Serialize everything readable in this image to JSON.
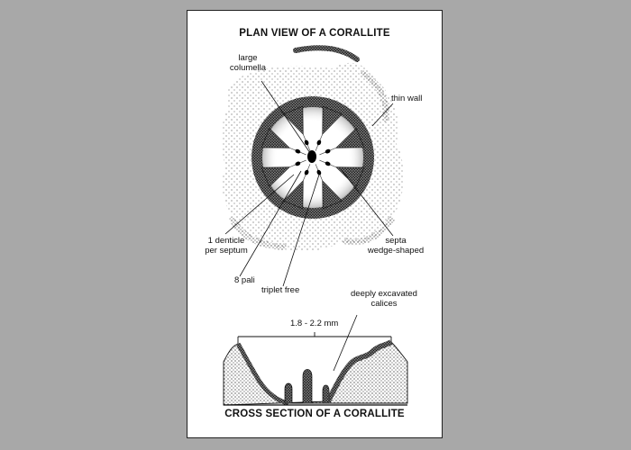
{
  "titles": {
    "plan": "PLAN VIEW OF A CORALLITE",
    "cross": "CROSS SECTION OF A CORALLITE"
  },
  "labels": {
    "large_columella_1": "large",
    "large_columella_2": "columella",
    "thin_wall": "thin wall",
    "denticle_1": "1 denticle",
    "denticle_2": "per septum",
    "pali": "8 pali",
    "triplet": "triplet free",
    "septa_1": "septa",
    "septa_2": "wedge-shaped",
    "excavated_1": "deeply excavated",
    "excavated_2": "calices",
    "dimension": "1.8 - 2.2 mm"
  },
  "colors": {
    "background": "#a8a8a8",
    "card": "#ffffff",
    "ink": "#111111"
  }
}
